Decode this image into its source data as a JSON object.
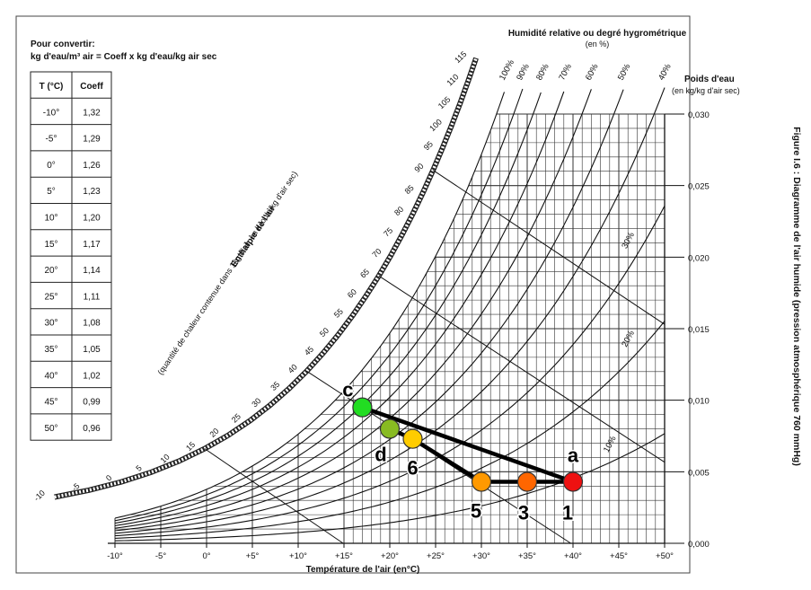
{
  "figure_caption": "Figure I.6 : Diagramme de l'air humide (pression atmosphérique 760 mmHg)",
  "conversion": {
    "title_line1": "Pour convertir:",
    "title_line2": "kg d'eau/m³ air = Coeff x kg d'eau/kg air sec",
    "headers": [
      "T (°C)",
      "Coeff"
    ],
    "rows": [
      [
        "-10°",
        "1,32"
      ],
      [
        "-5°",
        "1,29"
      ],
      [
        "0°",
        "1,26"
      ],
      [
        "5°",
        "1,23"
      ],
      [
        "10°",
        "1,20"
      ],
      [
        "15°",
        "1,17"
      ],
      [
        "20°",
        "1,14"
      ],
      [
        "25°",
        "1,11"
      ],
      [
        "30°",
        "1,08"
      ],
      [
        "35°",
        "1,05"
      ],
      [
        "40°",
        "1,02"
      ],
      [
        "45°",
        "0,99"
      ],
      [
        "50°",
        "0,96"
      ]
    ]
  },
  "chart_data": {
    "type": "scatter",
    "title": "",
    "xlabel": "Température de l'air (en°C)",
    "ylabel": "Poids d'eau",
    "ylabel_unit": "(en kg/kg d'air sec)",
    "xlim": [
      -10,
      50
    ],
    "ylim": [
      0,
      0.03
    ],
    "x_ticks": [
      "-10°",
      "-5°",
      "0°",
      "+5°",
      "+10°",
      "+15°",
      "+20°",
      "+25°",
      "+30°",
      "+35°",
      "+40°",
      "+45°",
      "+50°"
    ],
    "y_ticks": [
      "0,000",
      "0,005",
      "0,010",
      "0,015",
      "0,020",
      "0,025",
      "0,030"
    ],
    "rh_title": "Humidité relative ou degré hygrométrique",
    "rh_unit": "(en %)",
    "rh_curves": [
      {
        "label": "100%",
        "value": 100
      },
      {
        "label": "90%",
        "value": 90
      },
      {
        "label": "80%",
        "value": 80
      },
      {
        "label": "70%",
        "value": 70
      },
      {
        "label": "60%",
        "value": 60
      },
      {
        "label": "50%",
        "value": 50
      },
      {
        "label": "40%",
        "value": 40
      },
      {
        "label": "30%",
        "value": 30
      },
      {
        "label": "20%",
        "value": 20
      },
      {
        "label": "10%",
        "value": 10
      }
    ],
    "enthalpy_title": "Enthalpie de l'air",
    "enthalpy_subtitle": "(quantité de chaleur contenue dans 1kg d'air, en kJoule/kg d'air sec)",
    "enthalpy_ticks": [
      "-10",
      "-5",
      "0",
      "5",
      "10",
      "15",
      "20",
      "25",
      "30",
      "35",
      "40",
      "45",
      "50",
      "55",
      "60",
      "65",
      "70",
      "75",
      "80",
      "85",
      "90",
      "95",
      "100",
      "105",
      "110",
      "115"
    ],
    "points": [
      {
        "label": "c",
        "t": 17,
        "w": 0.0095,
        "color": "#22dd22"
      },
      {
        "label": "d",
        "t": 20,
        "w": 0.008,
        "color": "#88bb22"
      },
      {
        "label": "6",
        "t": 22.5,
        "w": 0.0073,
        "color": "#ffcc00"
      },
      {
        "label": "5",
        "t": 30,
        "w": 0.0043,
        "color": "#ff9900"
      },
      {
        "label": "3",
        "t": 35,
        "w": 0.0043,
        "color": "#ff6600"
      },
      {
        "label": "1",
        "t": 40,
        "w": 0.0043,
        "color": "#ee1111"
      },
      {
        "label": "a",
        "t": 40,
        "w": 0.0043,
        "color": "#ee1111"
      }
    ],
    "path_lines": [
      [
        "c",
        "a"
      ],
      [
        "d",
        "6"
      ],
      [
        "6",
        "5"
      ],
      [
        "5",
        "1"
      ]
    ]
  }
}
